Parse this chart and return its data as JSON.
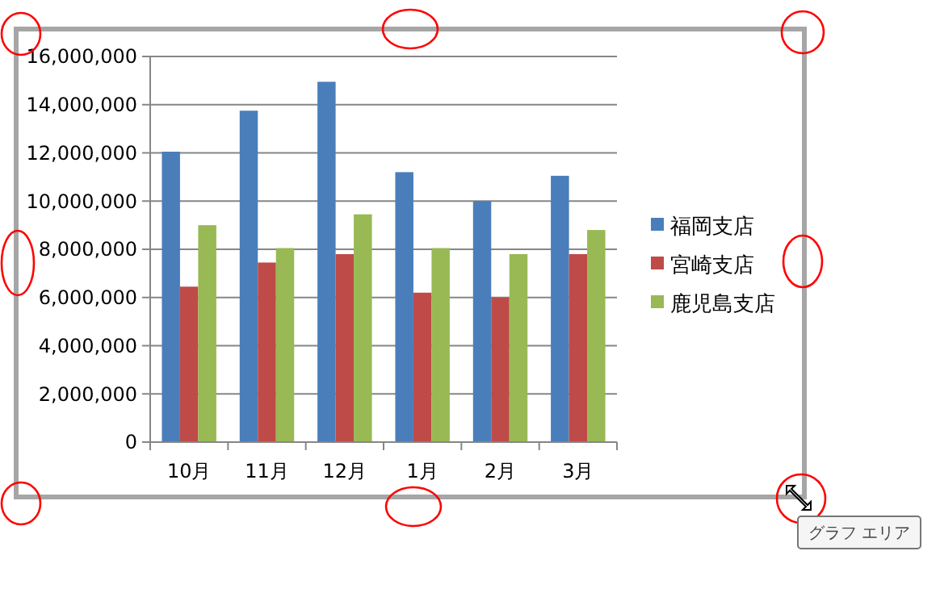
{
  "chart_data": {
    "type": "bar",
    "categories": [
      "10月",
      "11月",
      "12月",
      "1月",
      "2月",
      "3月"
    ],
    "series": [
      {
        "name": "福岡支店",
        "color": "#4a7ebb",
        "values": [
          12050000,
          13750000,
          14950000,
          11200000,
          10000000,
          11050000
        ]
      },
      {
        "name": "宮崎支店",
        "color": "#be4b48",
        "values": [
          6450000,
          7450000,
          7800000,
          6200000,
          6000000,
          7800000
        ]
      },
      {
        "name": "鹿児島支店",
        "color": "#98b954",
        "values": [
          9000000,
          8050000,
          9450000,
          8050000,
          7800000,
          8800000
        ]
      }
    ],
    "ylim": [
      0,
      16000000
    ],
    "yticks": [
      {
        "value": 0,
        "label": "0"
      },
      {
        "value": 2000000,
        "label": "2,000,000"
      },
      {
        "value": 4000000,
        "label": "4,000,000"
      },
      {
        "value": 6000000,
        "label": "6,000,000"
      },
      {
        "value": 8000000,
        "label": "8,000,000"
      },
      {
        "value": 10000000,
        "label": "10,000,000"
      },
      {
        "value": 12000000,
        "label": "12,000,000"
      },
      {
        "value": 14000000,
        "label": "14,000,000"
      },
      {
        "value": 16000000,
        "label": "16,000,000"
      }
    ],
    "grid": "y",
    "legend": "right",
    "annotations": [
      "グラフ エリア"
    ]
  }
}
